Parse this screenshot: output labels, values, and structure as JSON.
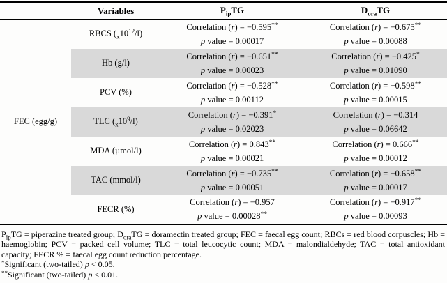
{
  "colors": {
    "row_shade": "#d9d9d9",
    "border": "#000000",
    "text": "#000000",
    "background": "#fdfdfc"
  },
  "table": {
    "group_label": "FEC (egg/g)",
    "header": {
      "variables": "Variables",
      "pip": {
        "base": "P",
        "sub": "ip",
        "rest": "TG"
      },
      "dora": {
        "base": "D",
        "sub": "ora",
        "rest": "TG"
      }
    },
    "labels": {
      "corr_pre": "Correlation (",
      "r_sym": "r",
      "corr_mid": ") = ",
      "p_sym": "p",
      "p_mid": " value = "
    },
    "rows": [
      {
        "var": {
          "pre": "RBCS (",
          "sub": "x",
          "mid": "10",
          "sup": "12",
          "post": "/l)"
        },
        "pip": {
          "r": "−0.595",
          "r_sup": "**",
          "p": "0.00017",
          "p_sup": ""
        },
        "dora": {
          "r": "−0.675",
          "r_sup": "**",
          "p": "0.00088",
          "p_sup": ""
        }
      },
      {
        "var": {
          "pre": "Hb (g/l)",
          "sub": "",
          "mid": "",
          "sup": "",
          "post": ""
        },
        "pip": {
          "r": "−0.651",
          "r_sup": "**",
          "p": "0.00023",
          "p_sup": ""
        },
        "dora": {
          "r": "−0.425",
          "r_sup": "*",
          "p": "0.01090",
          "p_sup": ""
        }
      },
      {
        "var": {
          "pre": "PCV (%)",
          "sub": "",
          "mid": "",
          "sup": "",
          "post": ""
        },
        "pip": {
          "r": "−0.528",
          "r_sup": "**",
          "p": "0.00112",
          "p_sup": ""
        },
        "dora": {
          "r": "−0.598",
          "r_sup": "**",
          "p": "0.00015",
          "p_sup": ""
        }
      },
      {
        "var": {
          "pre": "TLC (",
          "sub": "x",
          "mid": "10",
          "sup": "9",
          "post": "/l)"
        },
        "pip": {
          "r": "−0.391",
          "r_sup": "*",
          "p": "0.02023",
          "p_sup": ""
        },
        "dora": {
          "r": "−0.314",
          "r_sup": "",
          "p": "0.06642",
          "p_sup": ""
        }
      },
      {
        "var": {
          "pre": "MDA (µmol/l)",
          "sub": "",
          "mid": "",
          "sup": "",
          "post": ""
        },
        "pip": {
          "r": "0.843",
          "r_sup": "**",
          "p": "0.00021",
          "p_sup": ""
        },
        "dora": {
          "r": "0.666",
          "r_sup": "**",
          "p": "0.00012",
          "p_sup": ""
        }
      },
      {
        "var": {
          "pre": "TAC (mmol/l)",
          "sub": "",
          "mid": "",
          "sup": "",
          "post": ""
        },
        "pip": {
          "r": "−0.735",
          "r_sup": "**",
          "p": "0.00051",
          "p_sup": ""
        },
        "dora": {
          "r": "−0.658",
          "r_sup": "**",
          "p": "0.00017",
          "p_sup": ""
        }
      },
      {
        "var": {
          "pre": "FECR (%)",
          "sub": "",
          "mid": "",
          "sup": "",
          "post": ""
        },
        "pip": {
          "r": "−0.957",
          "r_sup": "",
          "p": "0.00028",
          "p_sup": "**"
        },
        "dora": {
          "r": "−0.917",
          "r_sup": "**",
          "p": "0.00093",
          "p_sup": ""
        }
      }
    ]
  },
  "footnotes": {
    "abbr": {
      "p1": "P",
      "sub1": "ip",
      "p2": "TG = piperazine treated group; D",
      "sub2": "ora",
      "p3": "TG = doramectin treated group; FEC = faecal egg count; RBCs = red blood corpuscles; Hb = haemoglobin; PCV = packed cell volume; TLC = total leucocytic count; MDA = malondialdehyde; TAC = total antioxidant capacity; FECR % = faecal egg count reduction percentage."
    },
    "sig1": {
      "sup": "*",
      "pre": "Significant (two-tailed) ",
      "p": "p",
      "post": " < 0.05."
    },
    "sig2": {
      "sup": "**",
      "pre": "Significant (two-tailed) ",
      "p": "p",
      "post": " < 0.01."
    }
  }
}
